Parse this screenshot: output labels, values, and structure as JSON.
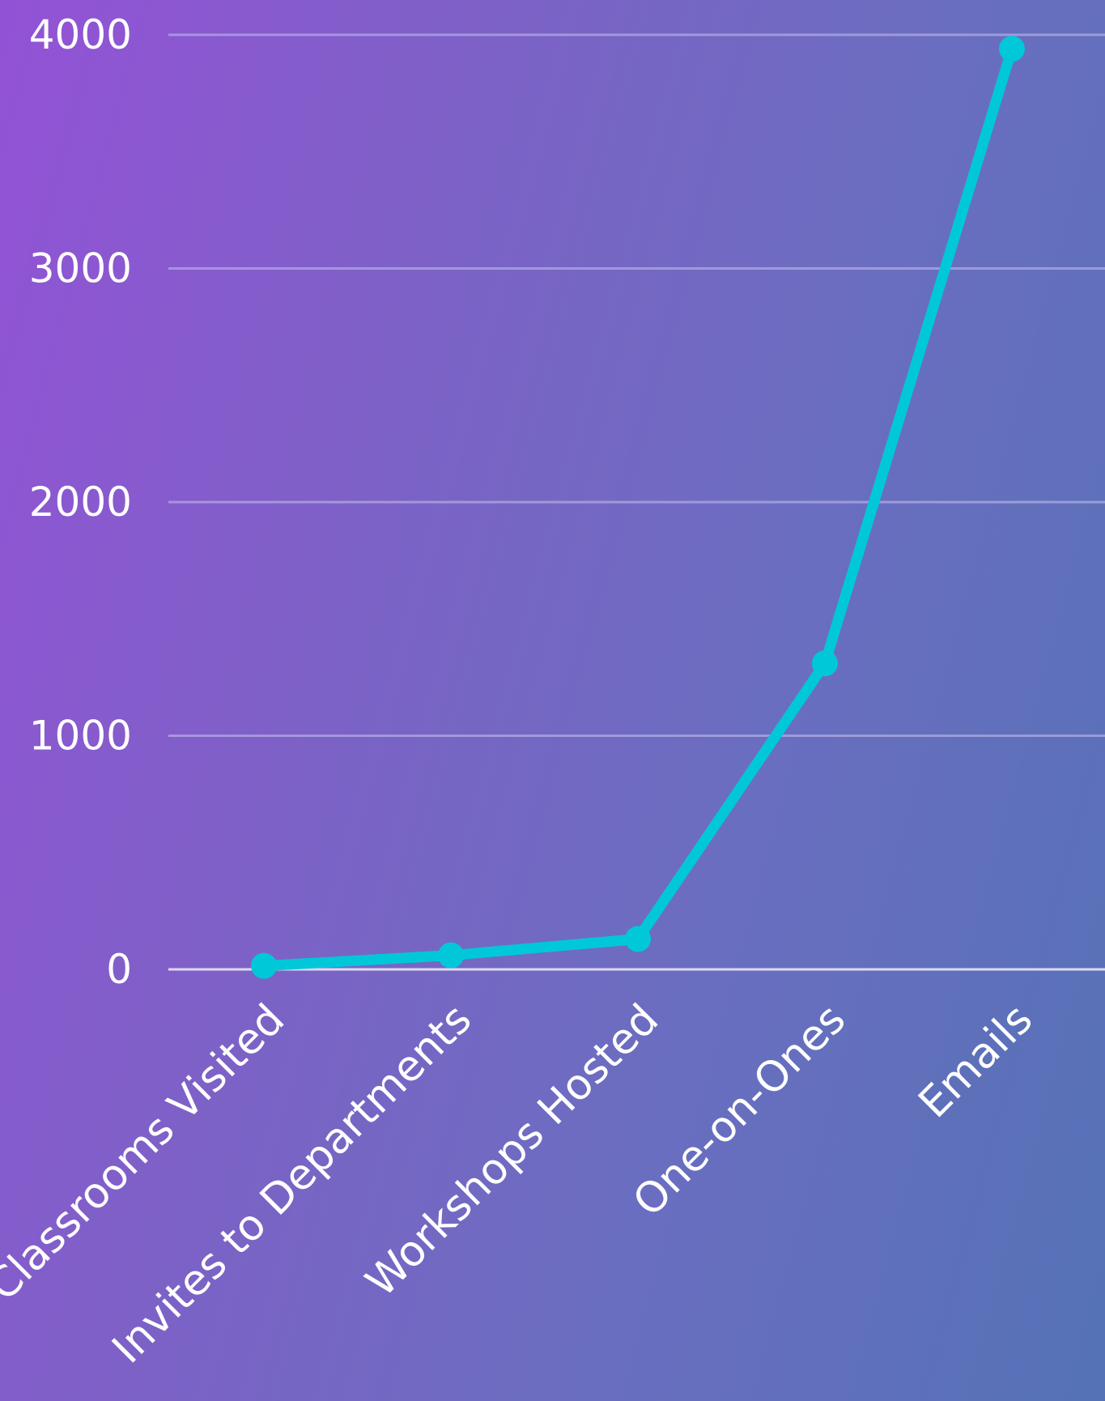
{
  "chart_data": {
    "type": "line",
    "title": "",
    "xlabel": "",
    "ylabel": "",
    "categories": [
      "Classrooms Visited",
      "Invites to Departments",
      "Workshops Hosted",
      "One-on-Ones",
      "Emails"
    ],
    "yticks": [
      "0",
      "1000",
      "2000",
      "3000",
      "4000"
    ],
    "ylim": [
      0,
      4000
    ],
    "grid": true,
    "legend": "none",
    "series": [
      {
        "values": [
          15,
          60,
          130,
          1310,
          3940
        ]
      }
    ],
    "colors": {
      "line": "#00c8d8",
      "background_start": "#9352d6",
      "background_end": "#5572b6",
      "grid": "#b9b3e6",
      "text": "#ffffff"
    }
  }
}
